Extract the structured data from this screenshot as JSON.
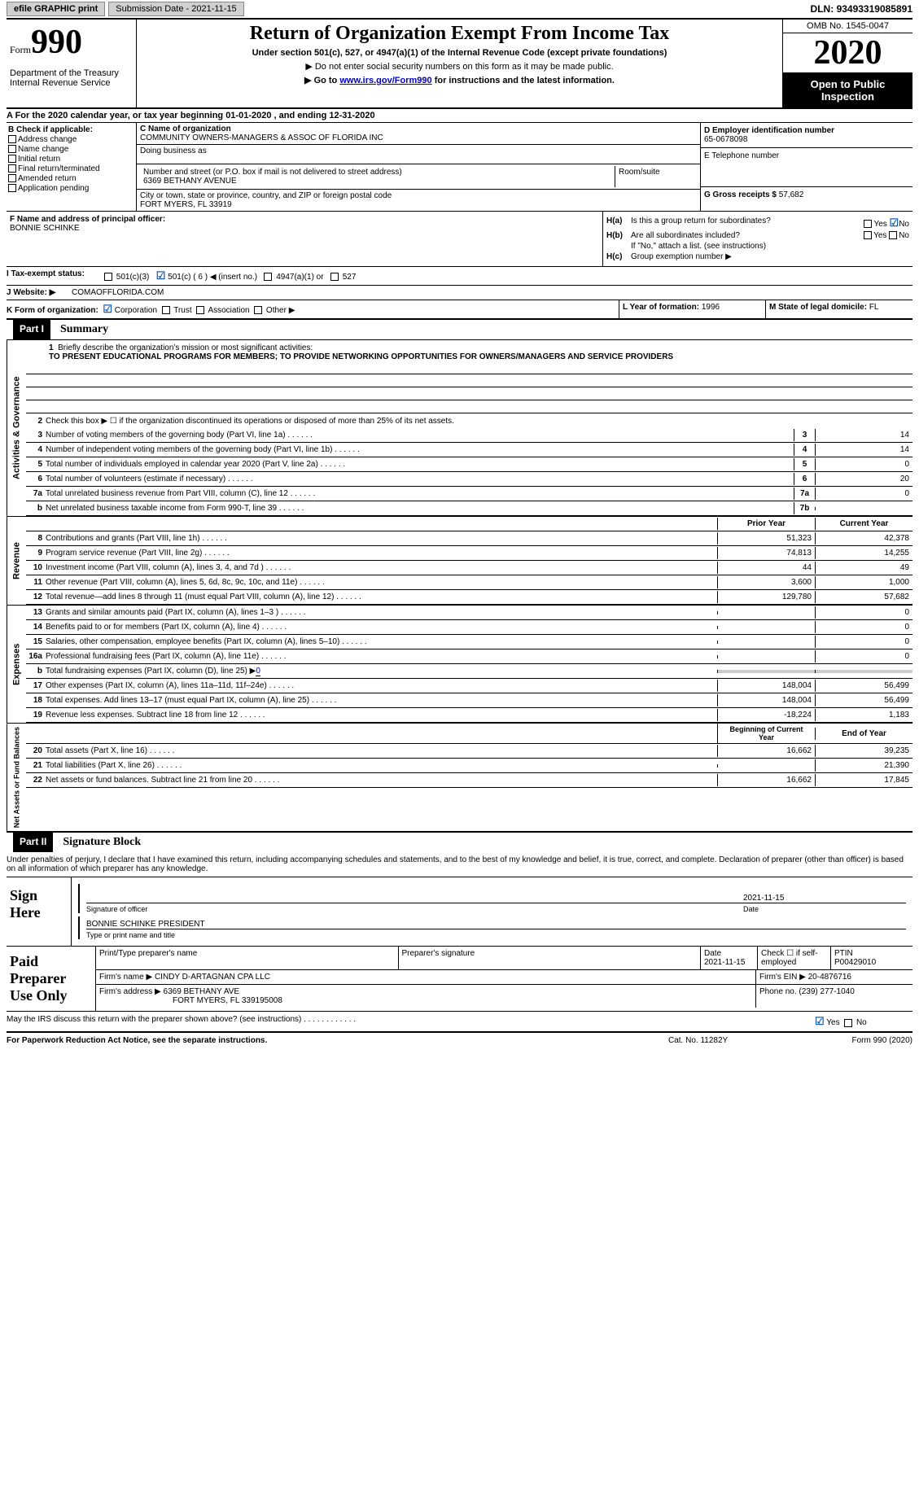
{
  "top": {
    "efile": "efile GRAPHIC print",
    "submission": "Submission Date - 2021-11-15",
    "dln_label": "DLN:",
    "dln": "93493319085891"
  },
  "header": {
    "form_label": "Form",
    "form_num": "990",
    "dept": "Department of the Treasury\nInternal Revenue Service",
    "title": "Return of Organization Exempt From Income Tax",
    "sub1": "Under section 501(c), 527, or 4947(a)(1) of the Internal Revenue Code (except private foundations)",
    "sub2": "▶ Do not enter social security numbers on this form as it may be made public.",
    "sub3_pre": "▶ Go to ",
    "sub3_link": "www.irs.gov/Form990",
    "sub3_post": " for instructions and the latest information.",
    "omb": "OMB No. 1545-0047",
    "year": "2020",
    "inspect": "Open to Public Inspection"
  },
  "line_a": "A For the 2020 calendar year, or tax year beginning 01-01-2020   , and ending 12-31-2020",
  "b": {
    "label": "B Check if applicable:",
    "items": [
      "Address change",
      "Name change",
      "Initial return",
      "Final return/terminated",
      "Amended return",
      "Application pending"
    ]
  },
  "c": {
    "name_lbl": "C Name of organization",
    "name": "COMMUNITY OWNERS-MANAGERS & ASSOC OF FLORIDA INC",
    "dba_lbl": "Doing business as",
    "addr_lbl": "Number and street (or P.O. box if mail is not delivered to street address)",
    "addr": "6369 BETHANY AVENUE",
    "room_lbl": "Room/suite",
    "city_lbl": "City or town, state or province, country, and ZIP or foreign postal code",
    "city": "FORT MYERS, FL  33919"
  },
  "d": {
    "lbl": "D Employer identification number",
    "val": "65-0678098"
  },
  "e": {
    "lbl": "E Telephone number",
    "val": ""
  },
  "g": {
    "lbl": "G Gross receipts $",
    "val": "57,682"
  },
  "f": {
    "lbl": "F Name and address of principal officer:",
    "val": "BONNIE SCHINKE"
  },
  "h": {
    "a_lbl": "H(a)",
    "a_txt": "Is this a group return for subordinates?",
    "b_lbl": "H(b)",
    "b_txt": "Are all subordinates included?",
    "b_note": "If \"No,\" attach a list. (see instructions)",
    "c_lbl": "H(c)",
    "c_txt": "Group exemption number ▶",
    "yes": "Yes",
    "no": "No"
  },
  "i": {
    "lbl": "I    Tax-exempt status:",
    "opts": [
      "501(c)(3)",
      "501(c) ( 6 ) ◀ (insert no.)",
      "4947(a)(1) or",
      "527"
    ]
  },
  "j": {
    "lbl": "J    Website: ▶",
    "val": "COMAOFFLORIDA.COM"
  },
  "k": {
    "lbl": "K Form of organization:",
    "opts": [
      "Corporation",
      "Trust",
      "Association",
      "Other ▶"
    ]
  },
  "lm": {
    "l_lbl": "L Year of formation:",
    "l_val": "1996",
    "m_lbl": "M State of legal domicile:",
    "m_val": "FL"
  },
  "part1": {
    "hdr": "Part I",
    "title": "Summary",
    "briefly_num": "1",
    "briefly": "Briefly describe the organization's mission or most significant activities:",
    "mission": "TO PRESENT EDUCATIONAL PROGRAMS FOR MEMBERS; TO PROVIDE NETWORKING OPPORTUNITIES FOR OWNERS/MANAGERS AND SERVICE PROVIDERS",
    "line2_num": "2",
    "line2": "Check this box ▶ ☐  if the organization discontinued its operations or disposed of more than 25% of its net assets.",
    "gov_label": "Activities & Governance",
    "gov_rows": [
      {
        "n": "3",
        "t": "Number of voting members of the governing body (Part VI, line 1a)",
        "c": "3",
        "v": "14"
      },
      {
        "n": "4",
        "t": "Number of independent voting members of the governing body (Part VI, line 1b)",
        "c": "4",
        "v": "14"
      },
      {
        "n": "5",
        "t": "Total number of individuals employed in calendar year 2020 (Part V, line 2a)",
        "c": "5",
        "v": "0"
      },
      {
        "n": "6",
        "t": "Total number of volunteers (estimate if necessary)",
        "c": "6",
        "v": "20"
      },
      {
        "n": "7a",
        "t": "Total unrelated business revenue from Part VIII, column (C), line 12",
        "c": "7a",
        "v": "0"
      },
      {
        "n": "b",
        "t": "Net unrelated business taxable income from Form 990-T, line 39",
        "c": "7b",
        "v": ""
      }
    ],
    "rev_label": "Revenue",
    "py_hdr": "Prior Year",
    "cy_hdr": "Current Year",
    "rev_rows": [
      {
        "n": "8",
        "t": "Contributions and grants (Part VIII, line 1h)",
        "py": "51,323",
        "cy": "42,378"
      },
      {
        "n": "9",
        "t": "Program service revenue (Part VIII, line 2g)",
        "py": "74,813",
        "cy": "14,255"
      },
      {
        "n": "10",
        "t": "Investment income (Part VIII, column (A), lines 3, 4, and 7d )",
        "py": "44",
        "cy": "49"
      },
      {
        "n": "11",
        "t": "Other revenue (Part VIII, column (A), lines 5, 6d, 8c, 9c, 10c, and 11e)",
        "py": "3,600",
        "cy": "1,000"
      },
      {
        "n": "12",
        "t": "Total revenue—add lines 8 through 11 (must equal Part VIII, column (A), line 12)",
        "py": "129,780",
        "cy": "57,682"
      }
    ],
    "exp_label": "Expenses",
    "exp_rows": [
      {
        "n": "13",
        "t": "Grants and similar amounts paid (Part IX, column (A), lines 1–3 )",
        "py": "",
        "cy": "0"
      },
      {
        "n": "14",
        "t": "Benefits paid to or for members (Part IX, column (A), line 4)",
        "py": "",
        "cy": "0"
      },
      {
        "n": "15",
        "t": "Salaries, other compensation, employee benefits (Part IX, column (A), lines 5–10)",
        "py": "",
        "cy": "0"
      },
      {
        "n": "16a",
        "t": "Professional fundraising fees (Part IX, column (A), line 11e)",
        "py": "",
        "cy": "0"
      }
    ],
    "exp_16b_n": "b",
    "exp_16b": "Total fundraising expenses (Part IX, column (D), line 25) ▶",
    "exp_16b_val": "0",
    "exp_rows2": [
      {
        "n": "17",
        "t": "Other expenses (Part IX, column (A), lines 11a–11d, 11f–24e)",
        "py": "148,004",
        "cy": "56,499"
      },
      {
        "n": "18",
        "t": "Total expenses. Add lines 13–17 (must equal Part IX, column (A), line 25)",
        "py": "148,004",
        "cy": "56,499"
      },
      {
        "n": "19",
        "t": "Revenue less expenses. Subtract line 18 from line 12",
        "py": "-18,224",
        "cy": "1,183"
      }
    ],
    "na_label": "Net Assets or Fund Balances",
    "bcy_hdr": "Beginning of Current Year",
    "eoy_hdr": "End of Year",
    "na_rows": [
      {
        "n": "20",
        "t": "Total assets (Part X, line 16)",
        "py": "16,662",
        "cy": "39,235"
      },
      {
        "n": "21",
        "t": "Total liabilities (Part X, line 26)",
        "py": "",
        "cy": "21,390"
      },
      {
        "n": "22",
        "t": "Net assets or fund balances. Subtract line 21 from line 20",
        "py": "16,662",
        "cy": "17,845"
      }
    ]
  },
  "part2": {
    "hdr": "Part II",
    "title": "Signature Block",
    "penalty": "Under penalties of perjury, I declare that I have examined this return, including accompanying schedules and statements, and to the best of my knowledge and belief, it is true, correct, and complete. Declaration of preparer (other than officer) is based on all information of which preparer has any knowledge.",
    "sign_here": "Sign Here",
    "sig_officer": "Signature of officer",
    "sig_date_lbl": "Date",
    "sig_date": "2021-11-15",
    "officer_name": "BONNIE SCHINKE PRESIDENT",
    "type_name": "Type or print name and title",
    "paid": "Paid Preparer Use Only",
    "prep_name_lbl": "Print/Type preparer's name",
    "prep_sig_lbl": "Preparer's signature",
    "prep_date_lbl": "Date",
    "prep_date": "2021-11-15",
    "check_self": "Check ☐ if self-employed",
    "ptin_lbl": "PTIN",
    "ptin": "P00429010",
    "firm_name_lbl": "Firm's name    ▶",
    "firm_name": "CINDY D-ARTAGNAN CPA LLC",
    "firm_ein_lbl": "Firm's EIN ▶",
    "firm_ein": "20-4876716",
    "firm_addr_lbl": "Firm's address ▶",
    "firm_addr": "6369 BETHANY AVE",
    "firm_addr2": "FORT MYERS, FL  339195008",
    "phone_lbl": "Phone no.",
    "phone": "(239) 277-1040",
    "may_irs": "May the IRS discuss this return with the preparer shown above? (see instructions)"
  },
  "footer": {
    "left": "For Paperwork Reduction Act Notice, see the separate instructions.",
    "mid": "Cat. No. 11282Y",
    "right": "Form 990 (2020)"
  }
}
